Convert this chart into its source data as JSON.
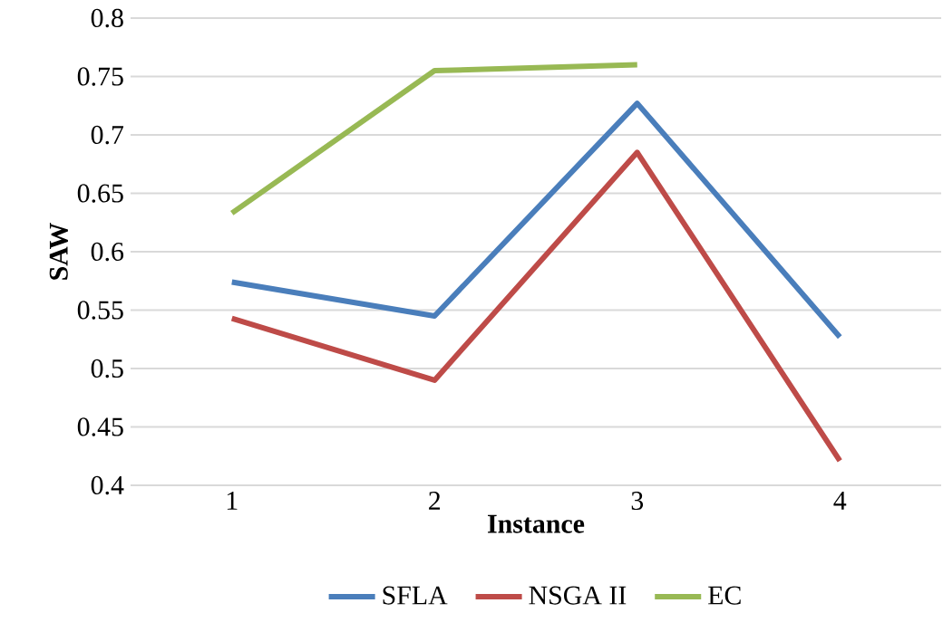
{
  "chart_data": {
    "type": "line",
    "xlabel": "Instance",
    "ylabel": "SAW",
    "categories": [
      "1",
      "2",
      "3",
      "4"
    ],
    "series": [
      {
        "name": "SFLA",
        "color": "#4a7ebb",
        "values": [
          0.574,
          0.545,
          0.727,
          0.527
        ]
      },
      {
        "name": "NSGA II",
        "color": "#be4b48",
        "values": [
          0.543,
          0.49,
          0.685,
          0.421
        ]
      },
      {
        "name": "EC",
        "color": "#98b954",
        "values": [
          0.633,
          0.755,
          0.76,
          null
        ]
      }
    ],
    "ylim": [
      0.4,
      0.8
    ],
    "yticks": [
      0.4,
      0.45,
      0.5,
      0.55,
      0.6,
      0.65,
      0.7,
      0.75,
      0.8
    ],
    "grid": "y",
    "legend": "bottom",
    "marker": "none",
    "line_style": "solid"
  }
}
